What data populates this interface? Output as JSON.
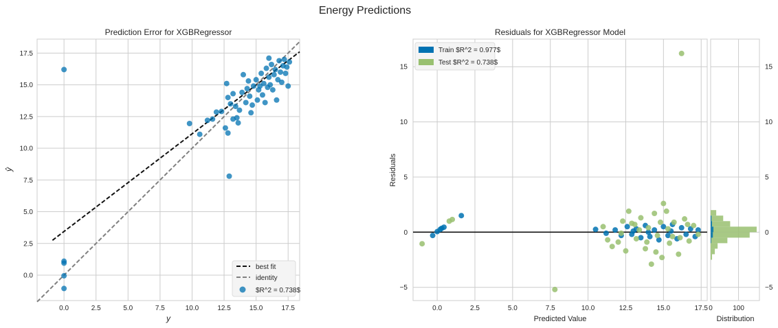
{
  "figure": {
    "title": "Energy Predictions"
  },
  "chart_data": [
    {
      "type": "scatter",
      "title": "Prediction Error for XGBRegressor",
      "xlabel": "y",
      "ylabel": "ŷ",
      "xlim": [
        -2.1,
        18.4
      ],
      "ylim": [
        -2.0,
        18.6
      ],
      "xticks": [
        0.0,
        2.5,
        5.0,
        7.5,
        10.0,
        12.5,
        15.0,
        17.5
      ],
      "xtick_labels": [
        "0.0",
        "2.5",
        "5.0",
        "7.5",
        "10.0",
        "12.5",
        "15.0",
        "17.5"
      ],
      "yticks": [
        0.0,
        2.5,
        5.0,
        7.5,
        10.0,
        12.5,
        15.0,
        17.5
      ],
      "ytick_labels": [
        "0.0",
        "2.5",
        "5.0",
        "7.5",
        "10.0",
        "12.5",
        "15.0",
        "17.5"
      ],
      "grid": true,
      "legend_position": "bottom-right",
      "legend": [
        "best fit",
        "identity",
        "$R^2 = 0.738$"
      ],
      "lines": [
        {
          "name": "best fit",
          "style": "dashed",
          "color": "#111111",
          "x": [
            -0.9,
            18.4
          ],
          "y": [
            2.75,
            17.6
          ]
        },
        {
          "name": "identity",
          "style": "dashed",
          "color": "#808080",
          "x": [
            -2.1,
            18.4
          ],
          "y": [
            -2.1,
            18.4
          ]
        }
      ],
      "series": [
        {
          "name": "$R^2 = 0.738$",
          "color": "#0072B2",
          "points": [
            [
              0.0,
              16.2
            ],
            [
              0.0,
              1.1
            ],
            [
              0.0,
              0.95
            ],
            [
              0.0,
              -0.05
            ],
            [
              0.0,
              -1.05
            ],
            [
              9.8,
              11.95
            ],
            [
              10.6,
              11.1
            ],
            [
              11.2,
              12.2
            ],
            [
              11.6,
              12.3
            ],
            [
              11.9,
              12.85
            ],
            [
              12.3,
              12.9
            ],
            [
              12.6,
              11.6
            ],
            [
              12.8,
              11.2
            ],
            [
              12.9,
              7.8
            ],
            [
              12.8,
              14.0
            ],
            [
              12.7,
              15.1
            ],
            [
              13.0,
              13.5
            ],
            [
              13.2,
              12.3
            ],
            [
              13.5,
              12.4
            ],
            [
              13.6,
              12.0
            ],
            [
              13.2,
              14.3
            ],
            [
              13.4,
              13.3
            ],
            [
              13.7,
              13.0
            ],
            [
              13.9,
              14.4
            ],
            [
              14.0,
              15.8
            ],
            [
              14.2,
              13.6
            ],
            [
              14.3,
              14.7
            ],
            [
              14.5,
              14.1
            ],
            [
              14.6,
              12.8
            ],
            [
              14.8,
              14.9
            ],
            [
              15.0,
              15.4
            ],
            [
              15.1,
              13.8
            ],
            [
              15.2,
              14.6
            ],
            [
              15.4,
              15.9
            ],
            [
              15.5,
              14.2
            ],
            [
              15.6,
              15.1
            ],
            [
              15.8,
              16.3
            ],
            [
              15.9,
              14.8
            ],
            [
              16.0,
              15.6
            ],
            [
              16.1,
              15.0
            ],
            [
              16.2,
              16.6
            ],
            [
              16.3,
              14.6
            ],
            [
              16.4,
              15.8
            ],
            [
              16.5,
              16.2
            ],
            [
              16.6,
              13.8
            ],
            [
              16.7,
              15.4
            ],
            [
              16.8,
              16.9
            ],
            [
              16.9,
              16.0
            ],
            [
              17.0,
              15.2
            ],
            [
              17.1,
              16.5
            ],
            [
              17.2,
              17.0
            ],
            [
              17.3,
              15.9
            ],
            [
              17.4,
              16.4
            ],
            [
              17.5,
              14.9
            ],
            [
              17.6,
              16.8
            ],
            [
              14.4,
              15.3
            ],
            [
              14.7,
              13.4
            ],
            [
              15.3,
              14.9
            ],
            [
              15.7,
              13.6
            ],
            [
              16.0,
              17.1
            ]
          ]
        }
      ]
    },
    {
      "type": "scatter",
      "title": "Residuals for XGBRegressor Model",
      "xlabel": "Predicted Value",
      "ylabel": "Residuals",
      "xlim": [
        -1.6,
        17.9
      ],
      "ylim": [
        -6.2,
        17.5
      ],
      "xticks": [
        0.0,
        2.5,
        5.0,
        7.5,
        10.0,
        12.5,
        15.0,
        17.5
      ],
      "xtick_labels": [
        "0.0",
        "2.5",
        "5.0",
        "7.5",
        "10.0",
        "12.5",
        "15.0",
        "17.5"
      ],
      "yticks": [
        -5,
        0,
        5,
        10,
        15
      ],
      "ytick_labels": [
        "−5",
        "0",
        "5",
        "10",
        "15"
      ],
      "grid": true,
      "legend_position": "top-left",
      "legend": [
        "Train $R^2 = 0.977$",
        "Test $R^2 = 0.738$"
      ],
      "zero_line": 0,
      "series": [
        {
          "name": "Train $R^2 = 0.977$",
          "color": "#0072B2",
          "points": [
            [
              -0.3,
              -0.3
            ],
            [
              0.0,
              0.05
            ],
            [
              0.2,
              0.25
            ],
            [
              0.3,
              0.35
            ],
            [
              0.45,
              0.45
            ],
            [
              1.6,
              1.5
            ],
            [
              10.5,
              0.25
            ],
            [
              11.2,
              -0.1
            ],
            [
              11.8,
              0.2
            ],
            [
              12.2,
              -0.3
            ],
            [
              12.6,
              0.5
            ],
            [
              12.9,
              -0.2
            ],
            [
              13.2,
              0.3
            ],
            [
              13.5,
              -0.5
            ],
            [
              13.8,
              0.6
            ],
            [
              14.1,
              -0.4
            ],
            [
              14.4,
              0.2
            ],
            [
              14.7,
              -0.7
            ],
            [
              15.0,
              0.5
            ],
            [
              15.3,
              -0.3
            ],
            [
              15.6,
              0.7
            ],
            [
              15.9,
              -0.6
            ],
            [
              16.2,
              0.4
            ],
            [
              16.5,
              -0.2
            ],
            [
              16.8,
              0.3
            ],
            [
              17.1,
              -0.4
            ],
            [
              17.3,
              0.2
            ],
            [
              13.0,
              0.1
            ],
            [
              14.0,
              0.0
            ],
            [
              15.5,
              0.1
            ]
          ]
        },
        {
          "name": "Test $R^2 = 0.738$",
          "color": "#99C070",
          "points": [
            [
              -1.0,
              -1.05
            ],
            [
              0.8,
              1.0
            ],
            [
              1.0,
              1.15
            ],
            [
              7.8,
              -5.2
            ],
            [
              11.0,
              0.5
            ],
            [
              11.3,
              -0.7
            ],
            [
              11.6,
              -1.3
            ],
            [
              12.0,
              -0.9
            ],
            [
              12.3,
              1.0
            ],
            [
              12.5,
              -1.7
            ],
            [
              12.9,
              0.8
            ],
            [
              13.2,
              -0.6
            ],
            [
              13.5,
              1.3
            ],
            [
              13.8,
              -1.5
            ],
            [
              14.2,
              -2.9
            ],
            [
              14.4,
              1.7
            ],
            [
              14.6,
              -0.3
            ],
            [
              14.9,
              -2.3
            ],
            [
              15.0,
              2.6
            ],
            [
              15.2,
              1.9
            ],
            [
              15.4,
              -1.0
            ],
            [
              15.7,
              0.9
            ],
            [
              16.0,
              -2.0
            ],
            [
              16.2,
              16.2
            ],
            [
              16.4,
              1.2
            ],
            [
              16.7,
              -0.8
            ],
            [
              17.0,
              0.6
            ],
            [
              17.3,
              -0.2
            ],
            [
              12.7,
              1.9
            ],
            [
              14.0,
              0.4
            ],
            [
              15.6,
              -0.4
            ],
            [
              13.4,
              0.2
            ],
            [
              14.8,
              0.9
            ],
            [
              16.1,
              -0.5
            ],
            [
              13.9,
              -0.9
            ],
            [
              15.3,
              0.3
            ],
            [
              12.2,
              -0.1
            ],
            [
              16.6,
              0.7
            ],
            [
              14.5,
              -1.8
            ],
            [
              13.1,
              0.7
            ]
          ]
        }
      ]
    },
    {
      "type": "bar",
      "orientation": "horizontal",
      "xlabel": "Distribution",
      "xticks": [
        0,
        100
      ],
      "xtick_labels": [
        "0",
        "100"
      ],
      "xlim": [
        0,
        175
      ],
      "ylim": [
        -6.2,
        17.5
      ],
      "yticks": [
        -5,
        0,
        5,
        10,
        15
      ],
      "ytick_labels": [
        "−5",
        "0",
        "5",
        "10",
        "15"
      ],
      "series": [
        {
          "name": "Train",
          "color": "#0072B2",
          "bins": [
            [
              1.0,
              1.5,
              3
            ],
            [
              0.5,
              1.0,
              5
            ],
            [
              0.0,
              0.5,
              10
            ],
            [
              -0.5,
              0.0,
              8
            ],
            [
              -1.0,
              -0.5,
              2
            ]
          ]
        },
        {
          "name": "Test",
          "color": "#99C070",
          "bins": [
            [
              1.5,
              2.0,
              20
            ],
            [
              1.0,
              1.5,
              45
            ],
            [
              0.5,
              1.0,
              70
            ],
            [
              0.0,
              0.5,
              165
            ],
            [
              -0.5,
              0.0,
              140
            ],
            [
              -1.0,
              -0.5,
              60
            ],
            [
              -1.5,
              -1.0,
              25
            ],
            [
              -2.0,
              -1.5,
              15
            ],
            [
              -2.5,
              -2.0,
              5
            ]
          ]
        }
      ]
    }
  ]
}
